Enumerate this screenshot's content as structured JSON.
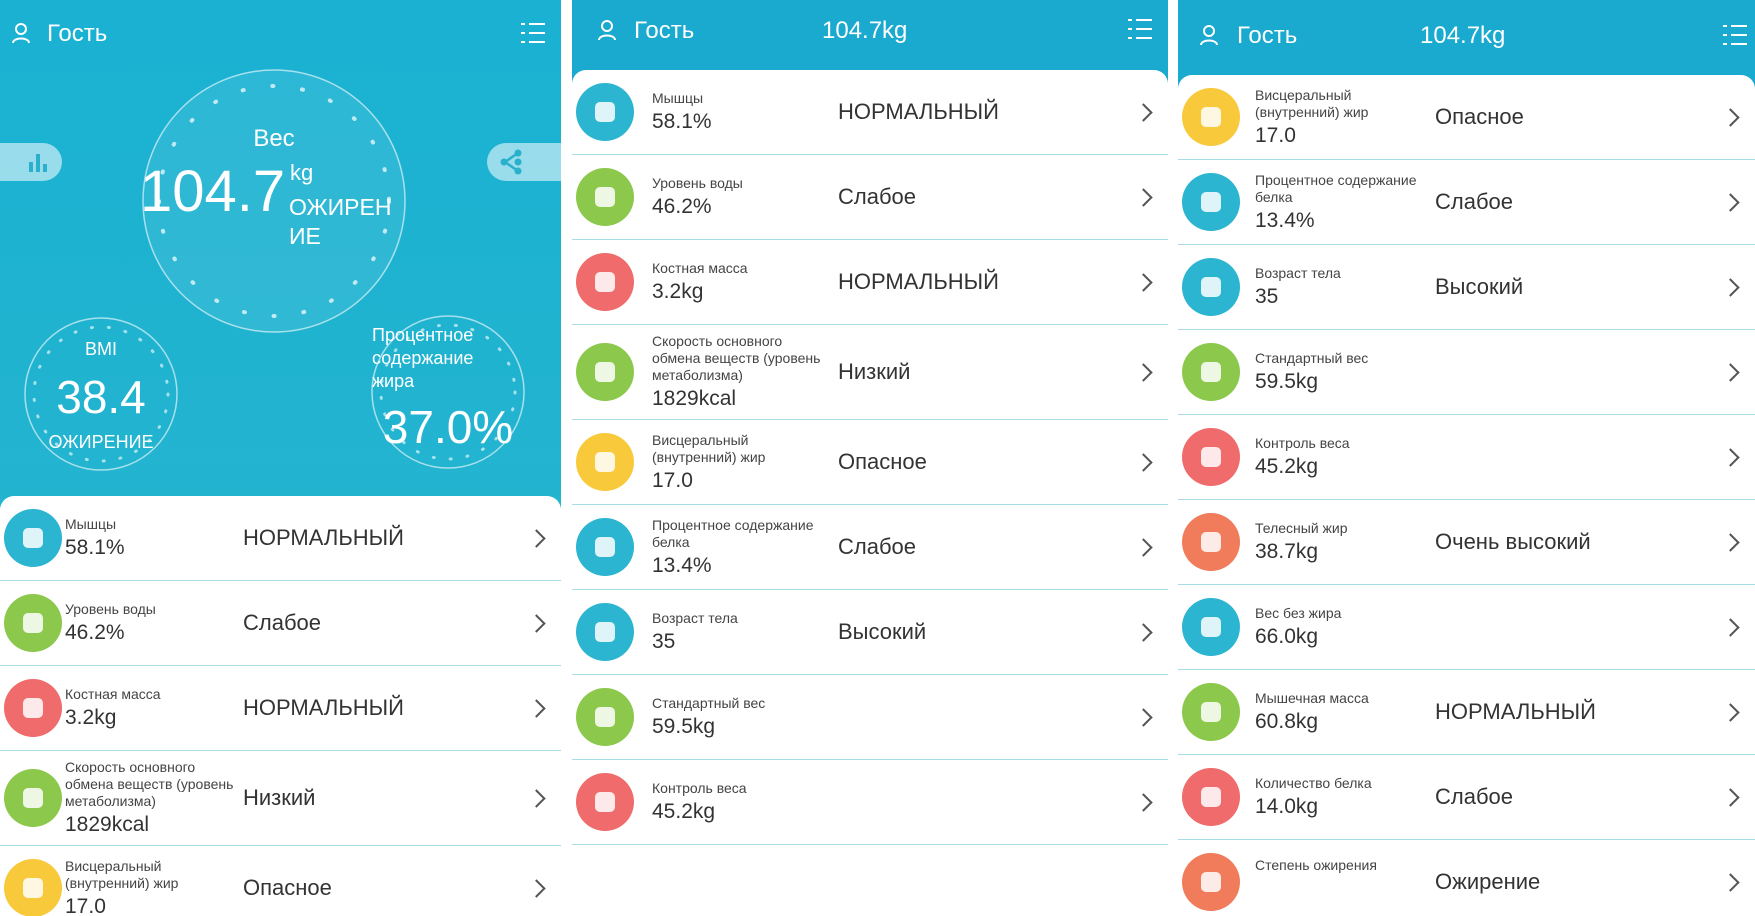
{
  "screens": [
    {
      "header": {
        "user": "Гость"
      },
      "weight": {
        "label": "Вес",
        "value": "104.7",
        "unit": "kg",
        "status": "ОЖИРЕНИЕ"
      },
      "bmi": {
        "label": "BMI",
        "value": "38.4",
        "status": "ОЖИРЕНИЕ"
      },
      "fat": {
        "label": "Процентное содержание жира",
        "value": "37.0%"
      },
      "rows": [
        {
          "label": "Мышцы",
          "value": "58.1%",
          "status": "НОРМАЛЬНЫЙ",
          "color": "#2bb5d1"
        },
        {
          "label": "Уровень воды",
          "value": "46.2%",
          "status": "Слабое",
          "color": "#8cc84b"
        },
        {
          "label": "Костная масса",
          "value": "3.2kg",
          "status": "НОРМАЛЬНЫЙ",
          "color": "#f06b6b"
        },
        {
          "label": "Скорость основного обмена веществ (уровень метаболизма)",
          "value": "1829kcal",
          "status": "Низкий",
          "color": "#8cc84b"
        },
        {
          "label": "Висцеральный (внутренний) жир",
          "value": "17.0",
          "status": "Опасное",
          "color": "#f9c93c"
        }
      ]
    },
    {
      "header": {
        "user": "Гость",
        "weight": "104.7kg"
      },
      "rows": [
        {
          "label": "Мышцы",
          "value": "58.1%",
          "status": "НОРМАЛЬНЫЙ",
          "color": "#2bb5d1"
        },
        {
          "label": "Уровень воды",
          "value": "46.2%",
          "status": "Слабое",
          "color": "#8cc84b"
        },
        {
          "label": "Костная масса",
          "value": "3.2kg",
          "status": "НОРМАЛЬНЫЙ",
          "color": "#f06b6b"
        },
        {
          "label": "Скорость основного обмена веществ (уровень метаболизма)",
          "value": "1829kcal",
          "status": "Низкий",
          "color": "#8cc84b"
        },
        {
          "label": "Висцеральный (внутренний) жир",
          "value": "17.0",
          "status": "Опасное",
          "color": "#f9c93c"
        },
        {
          "label": "Процентное содержание белка",
          "value": "13.4%",
          "status": "Слабое",
          "color": "#2bb5d1"
        },
        {
          "label": "Возраст тела",
          "value": "35",
          "status": "Высокий",
          "color": "#2bb5d1"
        },
        {
          "label": "Стандартный вес",
          "value": "59.5kg",
          "color": "#8cc84b"
        },
        {
          "label": "Контроль веса",
          "value": "45.2kg",
          "color": "#f06b6b"
        }
      ]
    },
    {
      "header": {
        "user": "Гость",
        "weight": "104.7kg"
      },
      "rows": [
        {
          "label": "Висцеральный (внутренний) жир",
          "value": "17.0",
          "status": "Опасное",
          "color": "#f9c93c"
        },
        {
          "label": "Процентное содержание белка",
          "value": "13.4%",
          "status": "Слабое",
          "color": "#2bb5d1"
        },
        {
          "label": "Возраст тела",
          "value": "35",
          "status": "Высокий",
          "color": "#2bb5d1"
        },
        {
          "label": "Стандартный вес",
          "value": "59.5kg",
          "color": "#8cc84b"
        },
        {
          "label": "Контроль веса",
          "value": "45.2kg",
          "color": "#f06b6b"
        },
        {
          "label": "Телесный жир",
          "value": "38.7kg",
          "status": "Очень высокий",
          "color": "#f07c5c"
        },
        {
          "label": "Вес без жира",
          "value": "66.0kg",
          "color": "#2bb5d1"
        },
        {
          "label": "Мышечная масса",
          "value": "60.8kg",
          "status": "НОРМАЛЬНЫЙ",
          "color": "#8cc84b"
        },
        {
          "label": "Количество белка",
          "value": "14.0kg",
          "status": "Слабое",
          "color": "#f06b6b"
        },
        {
          "label": "Степень ожирения",
          "status": "Ожирение",
          "color": "#f07c5c"
        }
      ]
    }
  ]
}
